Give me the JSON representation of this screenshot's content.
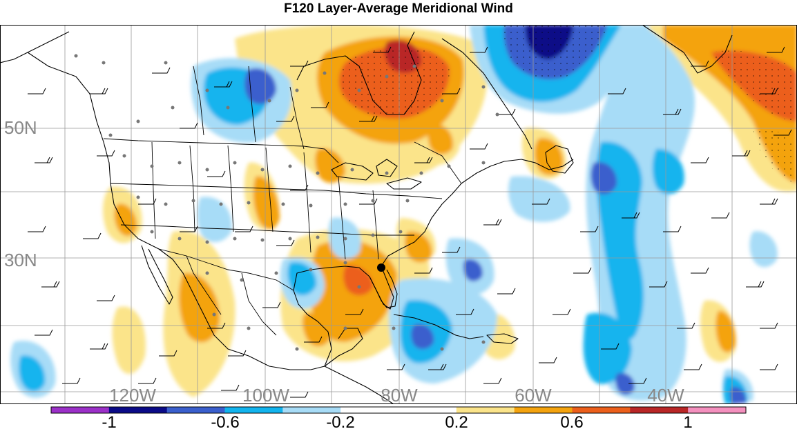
{
  "title": "F120 Layer-Average Meridional Wind",
  "map": {
    "lat_labels": [
      "50N",
      "30N"
    ],
    "lon_labels": [
      "120W",
      "100W",
      "80W",
      "60W",
      "40W"
    ]
  },
  "colorbar": {
    "colors": [
      "#9b30c8",
      "#0a0a87",
      "#3a5fcd",
      "#12b4ee",
      "#a7dcf7",
      "#ffffff",
      "#ffffff",
      "#fbe48a",
      "#f4a30e",
      "#ec5f1b",
      "#b92626",
      "#f490be"
    ],
    "tick_labels": [
      "-1",
      "-0.6",
      "-0.2",
      "0.2",
      "0.6",
      "1"
    ]
  },
  "colors": {
    "state_lines": "#000000",
    "grid": "#999999",
    "label_text": "#888888",
    "stations": "#777777"
  }
}
